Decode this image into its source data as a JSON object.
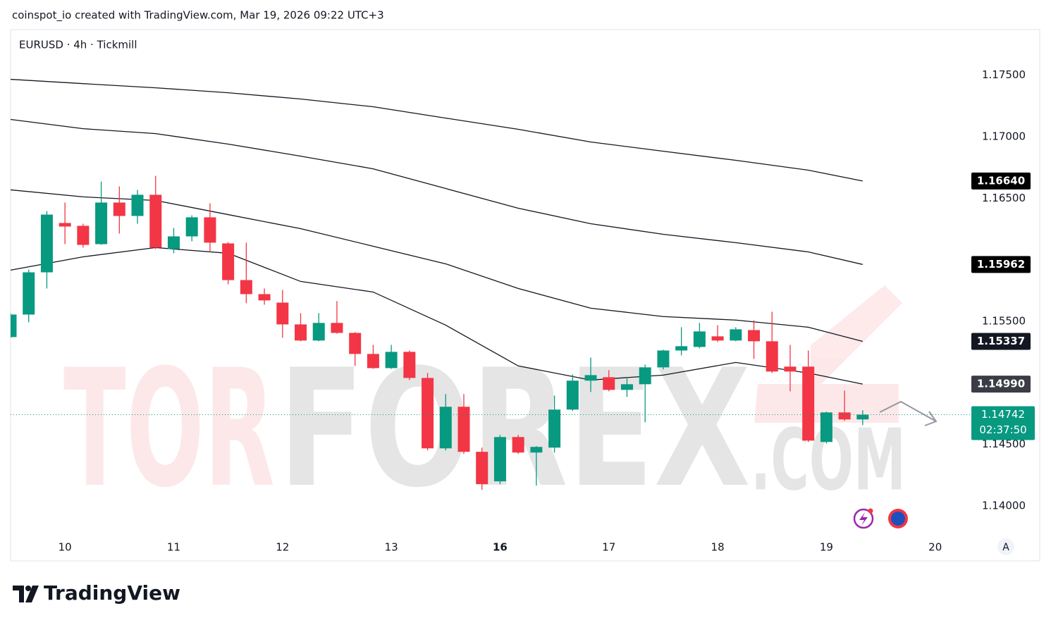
{
  "header": "coinspot_io created with TradingView.com, Mar 19, 2026 09:22 UTC+3",
  "symbol": "EURUSD · 4h · Tickmill",
  "watermark": [
    "TOR",
    "FOREX",
    ".COM"
  ],
  "footer": "TradingView",
  "scale_button": "A",
  "chart_data": {
    "type": "candlestick",
    "categories": [
      null,
      null,
      null,
      "10",
      null,
      null,
      null,
      null,
      null,
      "11",
      null,
      null,
      null,
      null,
      null,
      "12",
      null,
      null,
      null,
      null,
      null,
      "13",
      null,
      null,
      null,
      null,
      null,
      "16",
      null,
      null,
      null,
      null,
      null,
      "17",
      null,
      null,
      null,
      null,
      null,
      "18",
      null,
      null,
      null,
      null,
      null,
      "19",
      null,
      null,
      null,
      null,
      null,
      "20"
    ],
    "bold_category_index": 27,
    "open": [
      1.15372,
      1.15555,
      1.15898,
      1.16299,
      1.16276,
      1.16127,
      1.16465,
      1.16356,
      1.16528,
      1.16087,
      1.1619,
      1.16345,
      1.16133,
      1.15835,
      1.15721,
      1.15652,
      1.15475,
      1.15344,
      1.15487,
      1.15406,
      1.15235,
      1.1512,
      1.15252,
      1.1504,
      1.14468,
      1.14806,
      1.1444,
      1.142,
      1.1456,
      1.14434,
      1.14474,
      1.14783,
      1.15018,
      1.15046,
      1.14943,
      1.14989,
      1.15126,
      1.15263,
      1.15292,
      1.15378,
      1.15344,
      1.15429,
      1.15338,
      1.15132,
      1.15132,
      1.1452,
      1.1476,
      1.14703,
      null,
      null,
      null,
      null
    ],
    "high": [
      1.15567,
      1.15921,
      1.16396,
      1.16465,
      1.16293,
      1.16636,
      1.16596,
      1.16568,
      1.16682,
      1.16259,
      1.16362,
      1.16459,
      1.16144,
      1.16139,
      1.15767,
      1.15755,
      1.15567,
      1.15567,
      1.15664,
      1.15412,
      1.15309,
      1.15309,
      1.15263,
      1.1508,
      1.14909,
      1.14909,
      1.14474,
      1.14577,
      1.14577,
      1.14486,
      1.14897,
      1.15069,
      1.15206,
      1.15103,
      1.15035,
      1.15149,
      1.15269,
      1.15452,
      1.15487,
      1.15469,
      1.15452,
      1.15509,
      1.15578,
      1.15309,
      1.15263,
      1.14766,
      1.14937,
      1.14777,
      null,
      null,
      null,
      null
    ],
    "low": [
      1.15366,
      1.15492,
      1.15767,
      1.16127,
      1.16099,
      1.16121,
      1.16213,
      1.16293,
      1.16087,
      1.16053,
      1.1615,
      1.16064,
      1.15801,
      1.15647,
      1.15635,
      1.15366,
      1.15338,
      1.15338,
      1.154,
      1.15138,
      1.15114,
      1.15114,
      1.15023,
      1.14451,
      1.14451,
      1.14423,
      1.14131,
      1.14177,
      1.14423,
      1.14165,
      1.14434,
      1.14772,
      1.14926,
      1.14931,
      1.14886,
      1.1468,
      1.15109,
      1.15223,
      1.15281,
      1.15332,
      1.15338,
      1.15195,
      1.1508,
      1.14931,
      1.1452,
      1.14508,
      1.14691,
      1.14657,
      null,
      null,
      null,
      null
    ],
    "close": [
      1.15555,
      1.15898,
      1.16367,
      1.1627,
      1.16121,
      1.16465,
      1.16356,
      1.16528,
      1.16099,
      1.1619,
      1.16345,
      1.16139,
      1.15835,
      1.15721,
      1.1567,
      1.15475,
      1.15344,
      1.15487,
      1.15406,
      1.15235,
      1.1512,
      1.15252,
      1.1504,
      1.14468,
      1.14806,
      1.1444,
      1.14177,
      1.1456,
      1.14434,
      1.1448,
      1.14783,
      1.15018,
      1.15063,
      1.14943,
      1.14989,
      1.15126,
      1.15263,
      1.15298,
      1.15418,
      1.15344,
      1.15435,
      1.15338,
      1.15092,
      1.15092,
      1.14531,
      1.1476,
      1.14703,
      1.14742,
      null,
      null,
      null,
      null
    ],
    "up_color": "#089981",
    "down_color": "#f23645",
    "lines": [
      {
        "color": "#131722",
        "x": [
          0,
          4,
          8,
          12,
          16,
          20,
          24,
          28,
          32,
          36,
          40,
          44,
          47
        ],
        "values": [
          1.17466,
          1.17431,
          1.17397,
          1.17357,
          1.17306,
          1.17243,
          1.17151,
          1.1706,
          1.16957,
          1.16882,
          1.16808,
          1.16728,
          1.1664
        ]
      },
      {
        "color": "#131722",
        "x": [
          0,
          4,
          8,
          12,
          16,
          20,
          24,
          28,
          32,
          36,
          40,
          44,
          47
        ],
        "values": [
          1.1714,
          1.17065,
          1.17025,
          1.1694,
          1.16842,
          1.16739,
          1.16579,
          1.16419,
          1.16293,
          1.16207,
          1.16139,
          1.16064,
          1.15962
        ]
      },
      {
        "color": "#131722",
        "x": [
          0,
          4,
          8,
          12,
          16,
          20,
          24,
          28,
          32,
          36,
          40,
          44,
          47
        ],
        "values": [
          1.16568,
          1.16511,
          1.16482,
          1.16367,
          1.16253,
          1.1611,
          1.15967,
          1.15767,
          1.15607,
          1.15539,
          1.1551,
          1.15452,
          1.15337
        ]
      },
      {
        "color": "#131722",
        "x": [
          0,
          4,
          8,
          12,
          16,
          20,
          24,
          28,
          32,
          36,
          40,
          44,
          47
        ],
        "values": [
          1.15916,
          1.16024,
          1.16099,
          1.16053,
          1.15824,
          1.15738,
          1.15469,
          1.15138,
          1.15023,
          1.15063,
          1.15166,
          1.1508,
          1.1499
        ]
      }
    ],
    "ylim": [
      1.1376,
      1.1787
    ],
    "yticks": [
      {
        "value": 1.175,
        "label": "1.17500"
      },
      {
        "value": 1.17,
        "label": "1.17000"
      },
      {
        "value": 1.165,
        "label": "1.16500"
      },
      {
        "value": 1.155,
        "label": "1.15500"
      },
      {
        "value": 1.145,
        "label": "1.14500"
      },
      {
        "value": 1.14,
        "label": "1.14000"
      }
    ],
    "price_labels": [
      {
        "value": 1.1664,
        "label": "1.16640",
        "color": "#000000"
      },
      {
        "value": 1.15962,
        "label": "1.15962",
        "color": "#000000"
      },
      {
        "value": 1.15337,
        "label": "1.15337",
        "color": "#131722"
      },
      {
        "value": 1.1499,
        "label": "1.14990",
        "color": "#3a3d45"
      },
      {
        "value": 1.14742,
        "label": "1.14742",
        "color": "#089981",
        "countdown": "02:37:50"
      }
    ]
  }
}
